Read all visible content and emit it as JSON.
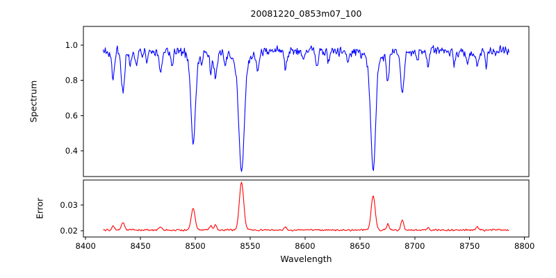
{
  "figure": {
    "background": "#ffffff",
    "axes_color": "#000000",
    "tick_label_color": "#000000"
  },
  "chart_data": [
    {
      "id": "spectrum-panel",
      "type": "line",
      "title": "20081220_0853m07_100",
      "ylabel": "Spectrum",
      "line_color": "#0000ff",
      "grid": false,
      "legend": null,
      "xlim": [
        8398,
        8804
      ],
      "ylim": [
        0.254,
        1.107
      ],
      "yticks": [
        {
          "value": 0.4,
          "label": "0.4"
        },
        {
          "value": 0.6,
          "label": "0.6"
        },
        {
          "value": 0.8,
          "label": "0.8"
        },
        {
          "value": 1.0,
          "label": "1.0"
        }
      ],
      "xticks": [],
      "x_start": 8416,
      "x_end": 8786,
      "x_step": 0.65,
      "continuum": 0.965,
      "noise_amplitude": 0.042,
      "noise_seed": 20081220,
      "absorption_lines": [
        {
          "center": 8425.0,
          "min_flux": 0.82,
          "width": 1.2
        },
        {
          "center": 8434.0,
          "min_flux": 0.73,
          "width": 1.5
        },
        {
          "center": 8440.5,
          "min_flux": 0.89,
          "width": 0.9
        },
        {
          "center": 8446.5,
          "min_flux": 0.87,
          "width": 1.0
        },
        {
          "center": 8456.0,
          "min_flux": 0.89,
          "width": 0.9
        },
        {
          "center": 8468.4,
          "min_flux": 0.85,
          "width": 1.3
        },
        {
          "center": 8479.0,
          "min_flux": 0.88,
          "width": 1.0
        },
        {
          "center": 8498.0,
          "min_flux": 0.44,
          "width": 2.0,
          "wing_drop": 0.05,
          "wing_width": 5
        },
        {
          "center": 8506.0,
          "min_flux": 0.9,
          "width": 0.9
        },
        {
          "center": 8514.1,
          "min_flux": 0.85,
          "width": 1.1
        },
        {
          "center": 8518.5,
          "min_flux": 0.81,
          "width": 1.3
        },
        {
          "center": 8527.0,
          "min_flux": 0.9,
          "width": 0.9
        },
        {
          "center": 8542.1,
          "min_flux": 0.28,
          "width": 2.4,
          "wing_drop": 0.07,
          "wing_width": 8
        },
        {
          "center": 8557.0,
          "min_flux": 0.88,
          "width": 1.0
        },
        {
          "center": 8582.3,
          "min_flux": 0.87,
          "width": 1.2
        },
        {
          "center": 8598.0,
          "min_flux": 0.9,
          "width": 0.9
        },
        {
          "center": 8611.0,
          "min_flux": 0.88,
          "width": 1.1
        },
        {
          "center": 8621.5,
          "min_flux": 0.9,
          "width": 0.9
        },
        {
          "center": 8639.0,
          "min_flux": 0.89,
          "width": 1.0
        },
        {
          "center": 8662.1,
          "min_flux": 0.29,
          "width": 2.2,
          "wing_drop": 0.06,
          "wing_width": 7
        },
        {
          "center": 8675.4,
          "min_flux": 0.79,
          "width": 1.2
        },
        {
          "center": 8688.6,
          "min_flux": 0.72,
          "width": 1.5
        },
        {
          "center": 8702.0,
          "min_flux": 0.9,
          "width": 0.9
        },
        {
          "center": 8712.0,
          "min_flux": 0.88,
          "width": 1.0
        },
        {
          "center": 8736.0,
          "min_flux": 0.89,
          "width": 0.9
        },
        {
          "center": 8748.0,
          "min_flux": 0.88,
          "width": 1.0
        },
        {
          "center": 8757.0,
          "min_flux": 0.87,
          "width": 1.1
        },
        {
          "center": 8765.0,
          "min_flux": 0.87,
          "width": 0.9
        }
      ]
    },
    {
      "id": "error-panel",
      "type": "line",
      "ylabel": "Error",
      "xlabel": "Wavelength",
      "line_color": "#ff0000",
      "grid": false,
      "legend": null,
      "xlim": [
        8398,
        8804
      ],
      "ylim": [
        0.0176,
        0.0397
      ],
      "yticks": [
        {
          "value": 0.02,
          "label": "0.02"
        },
        {
          "value": 0.03,
          "label": "0.03"
        }
      ],
      "xticks": [
        {
          "value": 8400,
          "label": "8400"
        },
        {
          "value": 8450,
          "label": "8450"
        },
        {
          "value": 8500,
          "label": "8500"
        },
        {
          "value": 8550,
          "label": "8550"
        },
        {
          "value": 8600,
          "label": "8600"
        },
        {
          "value": 8650,
          "label": "8650"
        },
        {
          "value": 8700,
          "label": "8700"
        },
        {
          "value": 8750,
          "label": "8750"
        },
        {
          "value": 8800,
          "label": "8800"
        }
      ],
      "x_start": 8416,
      "x_end": 8786,
      "x_step": 0.65,
      "baseline": 0.0203,
      "noise_amplitude": 0.0005,
      "noise_seed": 853,
      "peaks": [
        {
          "center": 8425.0,
          "peak": 0.022,
          "width": 1.2
        },
        {
          "center": 8434.0,
          "peak": 0.0233,
          "width": 1.4
        },
        {
          "center": 8468.4,
          "peak": 0.0215,
          "width": 1.2
        },
        {
          "center": 8498.0,
          "peak": 0.0285,
          "width": 1.8
        },
        {
          "center": 8514.1,
          "peak": 0.022,
          "width": 1.1
        },
        {
          "center": 8518.5,
          "peak": 0.0224,
          "width": 1.2
        },
        {
          "center": 8542.1,
          "peak": 0.0388,
          "width": 2.0
        },
        {
          "center": 8582.3,
          "peak": 0.0214,
          "width": 1.0
        },
        {
          "center": 8662.1,
          "peak": 0.0338,
          "width": 1.8
        },
        {
          "center": 8675.4,
          "peak": 0.0226,
          "width": 1.1
        },
        {
          "center": 8688.6,
          "peak": 0.0243,
          "width": 1.3
        },
        {
          "center": 8712.0,
          "peak": 0.0213,
          "width": 1.0
        },
        {
          "center": 8757.0,
          "peak": 0.0218,
          "width": 1.0
        }
      ]
    }
  ]
}
